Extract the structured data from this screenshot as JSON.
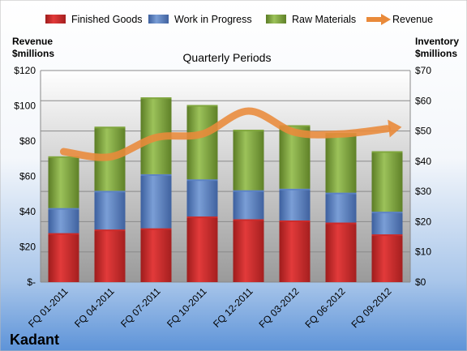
{
  "chart_data": {
    "type": "bar",
    "subtitle": "Quarterly Periods",
    "brand": "Kadant",
    "categories": [
      "FQ 01-2011",
      "FQ 04-2011",
      "FQ 07-2011",
      "FQ 10-2011",
      "FQ 12-2011",
      "FQ 03-2012",
      "FQ 06-2012",
      "FQ 09-2012"
    ],
    "stacked_series": [
      {
        "name": "Finished Goods",
        "values": [
          16.2,
          17.4,
          17.8,
          21.7,
          20.8,
          20.4,
          19.7,
          15.8
        ],
        "color": "#cc2a2a"
      },
      {
        "name": "Work in Progress",
        "values": [
          8.3,
          12.8,
          17.9,
          12.3,
          9.6,
          10.5,
          9.9,
          7.5
        ],
        "color": "#5b82c4"
      },
      {
        "name": "Raw Materials",
        "values": [
          17.1,
          21.2,
          25.4,
          24.6,
          20.0,
          21.0,
          19.7,
          20.0
        ],
        "color": "#7fa63d"
      }
    ],
    "line_series": {
      "name": "Revenue",
      "values": [
        74,
        71,
        82,
        84,
        97,
        85,
        84,
        87
      ],
      "color": "#e98a3a"
    },
    "y_left": {
      "label": [
        "Revenue",
        "$millions"
      ],
      "min": 0,
      "max": 120,
      "step": 20,
      "ticks": [
        "$-",
        "$20",
        "$40",
        "$60",
        "$80",
        "$100",
        "$120"
      ]
    },
    "y_right": {
      "label": [
        "Inventory",
        "$millions"
      ],
      "min": 0,
      "max": 70,
      "step": 10,
      "ticks": [
        "$0",
        "$10",
        "$20",
        "$30",
        "$40",
        "$50",
        "$60",
        "$70"
      ]
    },
    "grid": true,
    "legend_position": "top"
  }
}
